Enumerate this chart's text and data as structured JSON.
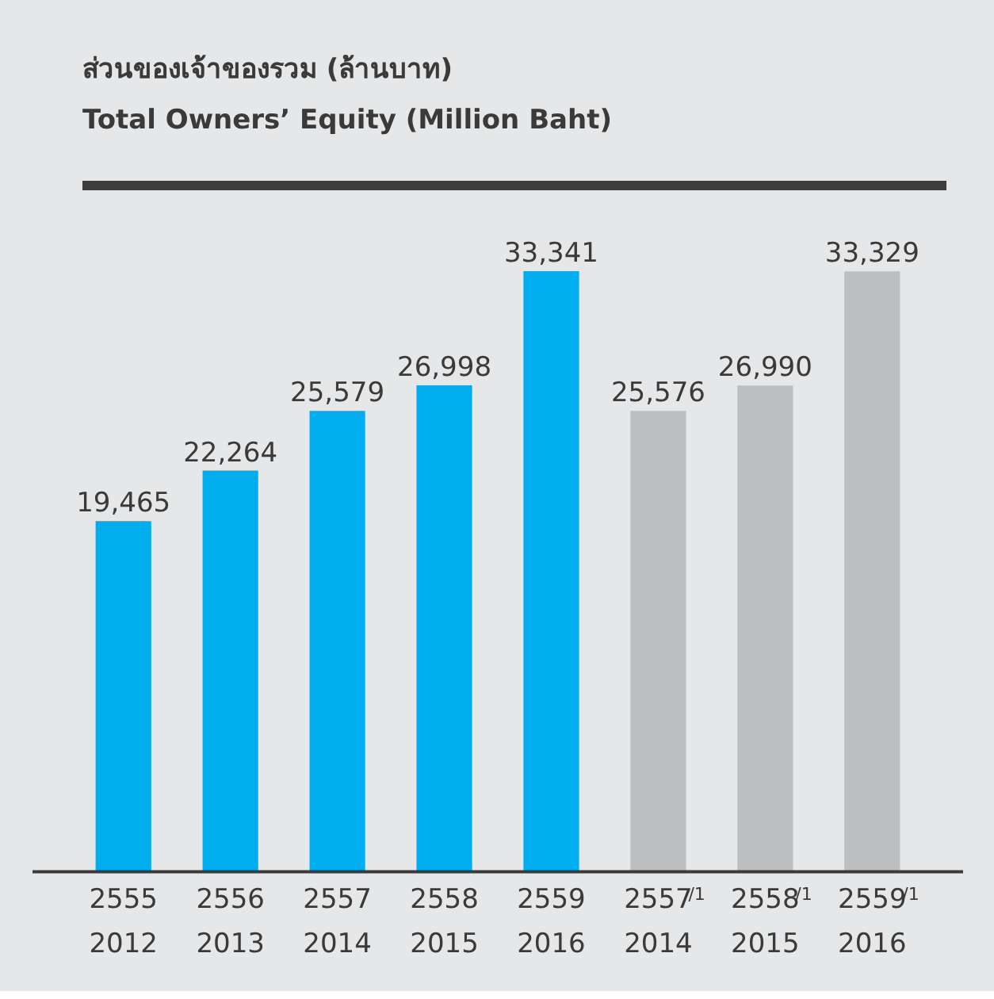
{
  "chart_data": {
    "type": "bar",
    "title": "ส่วนของเจ้าของรวม (ล้านบาท)",
    "subtitle": "Total Owners’ Equity (Million Baht)",
    "categories": [
      "2555\n2012",
      "2556\n2013",
      "2557\n2014",
      "2558\n2015",
      "2559\n2016",
      "2557$^{/1}$\n2014",
      "2558$^{/1}$\n2015",
      "2559$^{/1}$\n2016"
    ],
    "values": [
      19465,
      22264,
      25579,
      26998,
      33341,
      25576,
      26990,
      33329
    ],
    "value_labels": [
      "19,465",
      "22,264",
      "25,579",
      "26,998",
      "33,341",
      "25,576",
      "26,990",
      "33,329"
    ],
    "colors": [
      "#00aeef",
      "#00aeef",
      "#00aeef",
      "#00aeef",
      "#00aeef",
      "#bcbec0",
      "#bcbec0",
      "#bcbec0"
    ]
  }
}
